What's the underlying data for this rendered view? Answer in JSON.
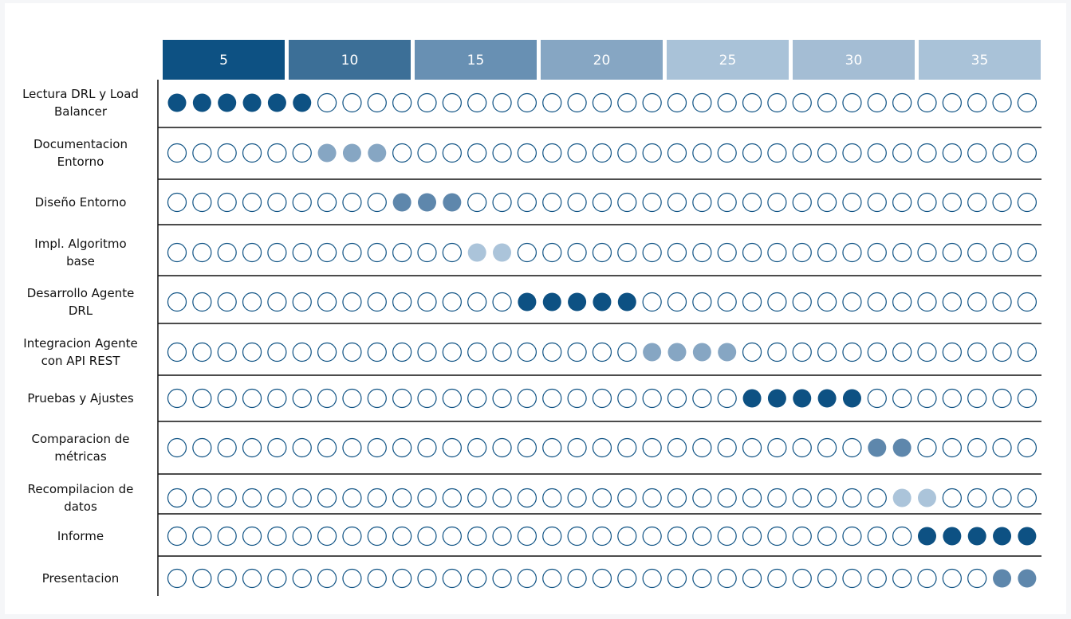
{
  "chart_data": {
    "type": "gantt",
    "periods": 35,
    "header_labels": [
      "5",
      "10",
      "15",
      "20",
      "25",
      "30",
      "35"
    ],
    "header_colors": [
      "#0d5183",
      "#3c6f97",
      "#6890b3",
      "#86a6c3",
      "#a9c2d8",
      "#a4bdd4",
      "#a9c2d8"
    ],
    "tasks": [
      {
        "name": "Lectura DRL y Load Balancer",
        "lines": [
          "Lectura DRL y Load",
          "Balancer"
        ],
        "start": 1,
        "end": 6,
        "color": "#0d5183"
      },
      {
        "name": "Documentacion Entorno",
        "lines": [
          "Documentacion",
          "Entorno"
        ],
        "start": 7,
        "end": 9,
        "color": "#86a6c3"
      },
      {
        "name": "Diseño Entorno",
        "lines": [
          "Diseño Entorno"
        ],
        "start": 10,
        "end": 12,
        "color": "#5e87ac"
      },
      {
        "name": "Impl. Algoritmo base",
        "lines": [
          "Impl. Algoritmo",
          "base"
        ],
        "start": 13,
        "end": 14,
        "color": "#abc4da"
      },
      {
        "name": "Desarrollo Agente DRL",
        "lines": [
          "Desarrollo Agente",
          "DRL"
        ],
        "start": 15,
        "end": 19,
        "color": "#0d5183"
      },
      {
        "name": "Integracion Agente con API REST",
        "lines": [
          "Integracion Agente",
          "con API REST"
        ],
        "start": 20,
        "end": 23,
        "color": "#86a6c3"
      },
      {
        "name": "Pruebas y Ajustes",
        "lines": [
          "Pruebas y Ajustes"
        ],
        "start": 24,
        "end": 28,
        "color": "#0d5183"
      },
      {
        "name": "Comparacion de métricas",
        "lines": [
          "Comparacion de",
          "métricas"
        ],
        "start": 29,
        "end": 30,
        "color": "#5e87ac"
      },
      {
        "name": "Recompilacion de datos",
        "lines": [
          "Recompilacion de",
          "datos"
        ],
        "start": 30,
        "end": 31,
        "color": "#abc4da"
      },
      {
        "name": "Informe",
        "lines": [
          "Informe"
        ],
        "start": 31,
        "end": 35,
        "color": "#0d5183"
      },
      {
        "name": "Presentacion",
        "lines": [
          "Presentacion"
        ],
        "start": 34,
        "end": 35,
        "color": "#5e87ac"
      }
    ],
    "empty_stroke_color": "#0d5183",
    "grid": false,
    "legend": "none"
  }
}
